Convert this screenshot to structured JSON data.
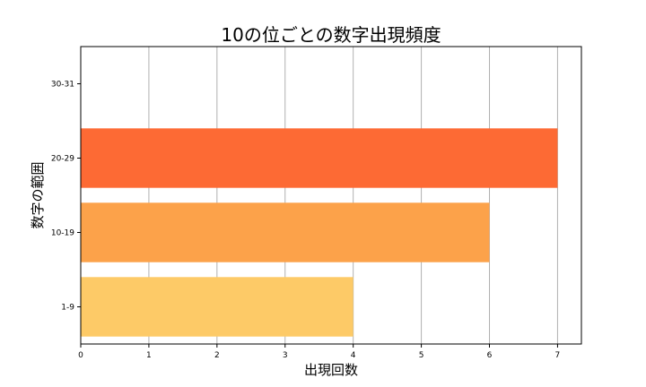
{
  "chart_data": {
    "type": "bar",
    "orientation": "horizontal",
    "title": "10の位ごとの数字出現頻度",
    "xlabel": "出現回数",
    "ylabel": "数字の範囲",
    "categories": [
      "1-9",
      "10-19",
      "20-29",
      "30-31"
    ],
    "values": [
      4,
      6,
      7,
      0
    ],
    "colors": [
      "#fdca67",
      "#fca24a",
      "#fd6a34",
      "#fd6a34"
    ],
    "xlim": [
      0,
      7.35
    ],
    "xticks": [
      0,
      1,
      2,
      3,
      4,
      5,
      6,
      7
    ],
    "grid": true
  }
}
